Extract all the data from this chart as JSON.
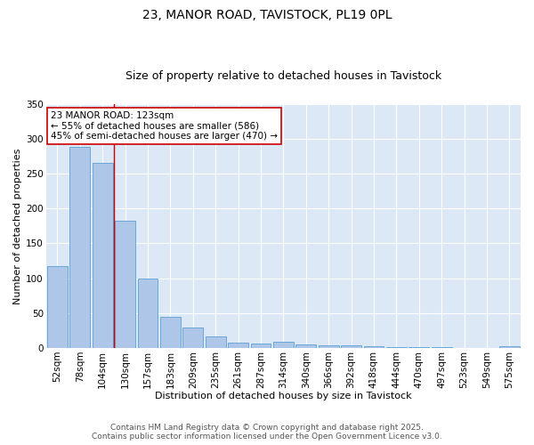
{
  "title": "23, MANOR ROAD, TAVISTOCK, PL19 0PL",
  "subtitle": "Size of property relative to detached houses in Tavistock",
  "xlabel": "Distribution of detached houses by size in Tavistock",
  "ylabel": "Number of detached properties",
  "bar_labels": [
    "52sqm",
    "78sqm",
    "104sqm",
    "130sqm",
    "157sqm",
    "183sqm",
    "209sqm",
    "235sqm",
    "261sqm",
    "287sqm",
    "314sqm",
    "340sqm",
    "366sqm",
    "392sqm",
    "418sqm",
    "444sqm",
    "470sqm",
    "497sqm",
    "523sqm",
    "549sqm",
    "575sqm"
  ],
  "bar_values": [
    118,
    288,
    265,
    183,
    99,
    45,
    29,
    16,
    7,
    6,
    9,
    5,
    4,
    4,
    3,
    1,
    1,
    1,
    0,
    0,
    2
  ],
  "bar_color": "#aec6e8",
  "bar_edge_color": "#5a9fd4",
  "annotation_text": "23 MANOR ROAD: 123sqm\n← 55% of detached houses are smaller (586)\n45% of semi-detached houses are larger (470) →",
  "vline_color": "#cc0000",
  "annotation_box_color": "#ffffff",
  "annotation_box_edge_color": "#cc0000",
  "ylim": [
    0,
    350
  ],
  "yticks": [
    0,
    50,
    100,
    150,
    200,
    250,
    300,
    350
  ],
  "bg_color": "#dce8f5",
  "fig_color": "#ffffff",
  "footer_line1": "Contains HM Land Registry data © Crown copyright and database right 2025.",
  "footer_line2": "Contains public sector information licensed under the Open Government Licence v3.0.",
  "title_fontsize": 10,
  "subtitle_fontsize": 9,
  "axis_label_fontsize": 8,
  "tick_fontsize": 7.5,
  "annotation_fontsize": 7.5,
  "footer_fontsize": 6.5
}
